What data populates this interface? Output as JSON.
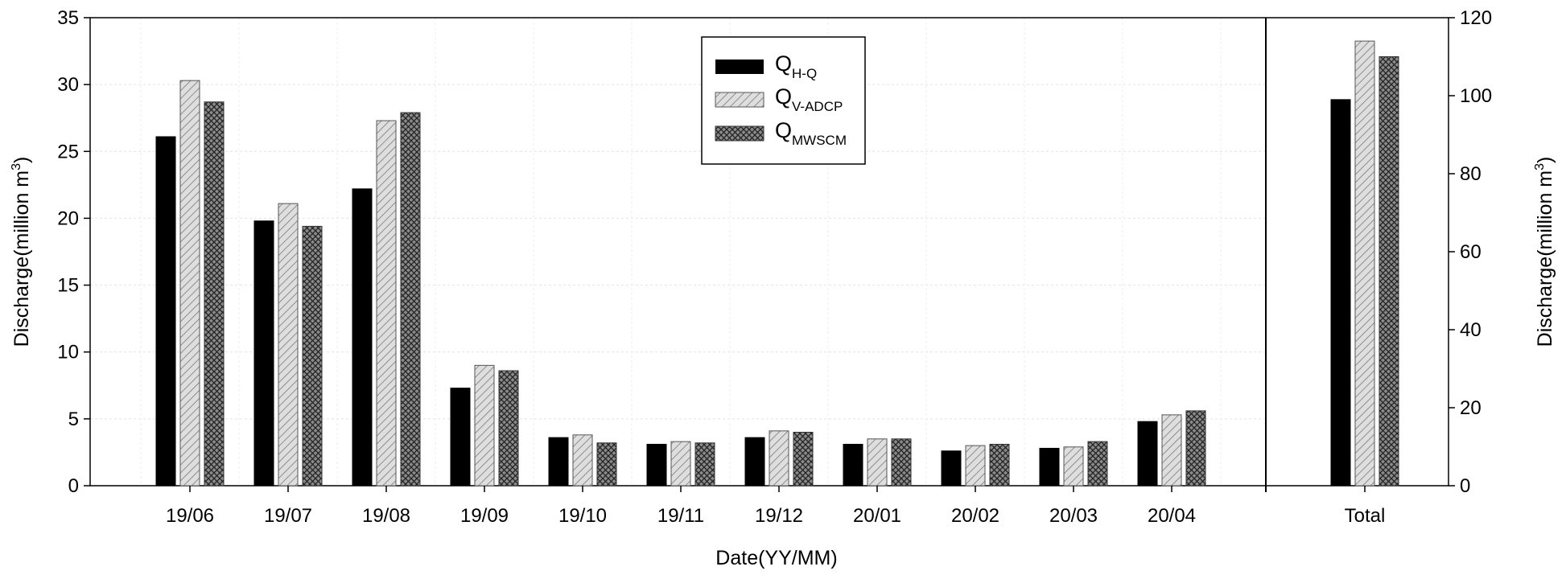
{
  "chart_data": {
    "type": "bar",
    "xlabel": "Date(YY/MM)",
    "ylabel_main": "Discharge(million m",
    "ylabel_sup": "3",
    "ylabel_close": ")",
    "left_axis": {
      "ylim": [
        0,
        35
      ],
      "ticks": [
        0,
        5,
        10,
        15,
        20,
        25,
        30,
        35
      ]
    },
    "right_axis": {
      "ylim": [
        0,
        120
      ],
      "ticks": [
        0,
        20,
        40,
        60,
        80,
        100,
        120
      ]
    },
    "grid": true,
    "legend_position": "top-center",
    "categories": [
      "19/06",
      "19/07",
      "19/08",
      "19/09",
      "19/10",
      "19/11",
      "19/12",
      "20/01",
      "20/02",
      "20/03",
      "20/04"
    ],
    "series": [
      {
        "name": "Q",
        "sub": "H-Q",
        "fill": "solid-black",
        "color": "#000000",
        "values": [
          26.1,
          19.8,
          22.2,
          7.3,
          3.6,
          3.1,
          3.6,
          3.1,
          2.6,
          2.8,
          4.8
        ]
      },
      {
        "name": "Q",
        "sub": "V-ADCP",
        "fill": "diagonal-hatch-light",
        "color": "#d9d9d9",
        "values": [
          30.3,
          21.1,
          27.3,
          9.0,
          3.8,
          3.3,
          4.1,
          3.5,
          3.0,
          2.9,
          5.3
        ]
      },
      {
        "name": "Q",
        "sub": "MWSCM",
        "fill": "crosshatch-dark",
        "color": "#6e6e6e",
        "values": [
          28.7,
          19.4,
          27.9,
          8.6,
          3.2,
          3.2,
          4.0,
          3.5,
          3.1,
          3.3,
          5.6
        ]
      }
    ],
    "total": {
      "category": "Total",
      "axis": "right",
      "values": [
        99,
        114,
        110
      ]
    }
  }
}
